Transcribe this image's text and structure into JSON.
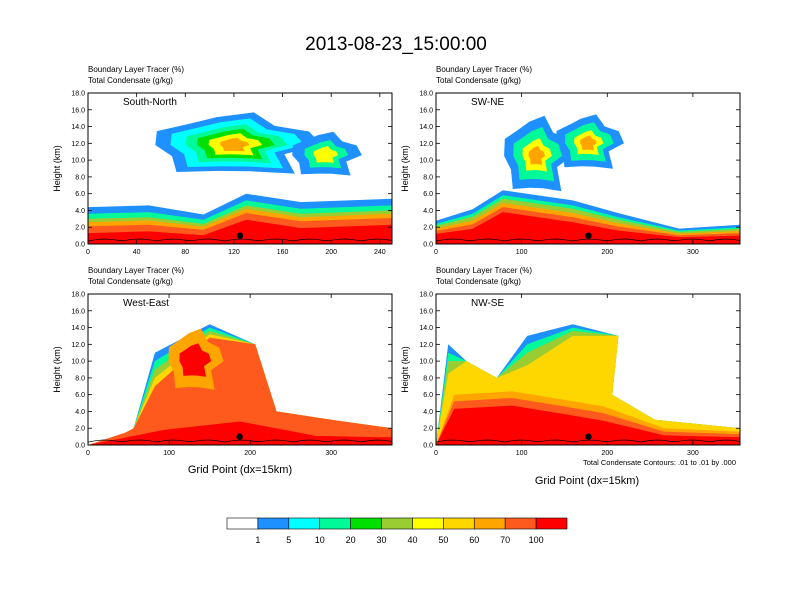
{
  "figure": {
    "title": "2013-08-23_15:00:00",
    "x_axis_label": "Grid Point (dx=15km)",
    "contour_note": "Total Condensate Contours: .01 to .01 by .000"
  },
  "colorbar": {
    "labels": [
      "1",
      "5",
      "10",
      "20",
      "30",
      "40",
      "50",
      "60",
      "70",
      "100"
    ],
    "colors": [
      "#ffffff",
      "#1e90ff",
      "#00ffff",
      "#00fa9a",
      "#00e000",
      "#9acd32",
      "#ffff00",
      "#ffd700",
      "#ffa500",
      "#ff5a1e",
      "#ff0000"
    ]
  },
  "chart_data": [
    {
      "type": "heatmap",
      "panel": "South-North",
      "subtitle_lines": [
        "Boundary Layer Tracer   (%)",
        "Total Condensate   (g/kg)"
      ],
      "ylabel": "Height (km)",
      "ylim": [
        0,
        18
      ],
      "yticks": [
        "0.0",
        "2.0",
        "4.0",
        "6.0",
        "8.0",
        "10.0",
        "12.0",
        "14.0",
        "16.0",
        "18.0"
      ],
      "xlim": [
        0,
        250
      ],
      "xticks": [
        "0",
        "40",
        "80",
        "120",
        "160",
        "200",
        "240"
      ],
      "surface_marker_x": 125
    },
    {
      "type": "heatmap",
      "panel": "SW-NE",
      "subtitle_lines": [
        "Boundary Layer Tracer   (%)",
        "Total Condensate   (g/kg)"
      ],
      "ylabel": "Height (km)",
      "ylim": [
        0,
        18
      ],
      "yticks": [
        "0.0",
        "2.0",
        "4.0",
        "6.0",
        "8.0",
        "10.0",
        "12.0",
        "14.0",
        "16.0",
        "18.0"
      ],
      "xlim": [
        0,
        355
      ],
      "xticks": [
        "0",
        "100",
        "200",
        "300"
      ],
      "surface_marker_x": 178
    },
    {
      "type": "heatmap",
      "panel": "West-East",
      "subtitle_lines": [
        "Boundary Layer Tracer   (%)",
        "Total Condensate   (g/kg)"
      ],
      "ylabel": "Height (km)",
      "ylim": [
        0,
        18
      ],
      "yticks": [
        "0.0",
        "2.0",
        "4.0",
        "6.0",
        "8.0",
        "10.0",
        "12.0",
        "14.0",
        "16.0",
        "18.0"
      ],
      "xlim": [
        0,
        375
      ],
      "xticks": [
        "0",
        "100",
        "200",
        "300"
      ],
      "surface_marker_x": 187
    },
    {
      "type": "heatmap",
      "panel": "NW-SE",
      "subtitle_lines": [
        "Boundary Layer Tracer   (%)",
        "Total Condensate   (g/kg)"
      ],
      "ylabel": "Height (km)",
      "ylim": [
        0,
        18
      ],
      "yticks": [
        "0.0",
        "2.0",
        "4.0",
        "6.0",
        "8.0",
        "10.0",
        "12.0",
        "14.0",
        "16.0",
        "18.0"
      ],
      "xlim": [
        0,
        355
      ],
      "xticks": [
        "0",
        "100",
        "200",
        "300"
      ],
      "surface_marker_x": 178
    }
  ]
}
